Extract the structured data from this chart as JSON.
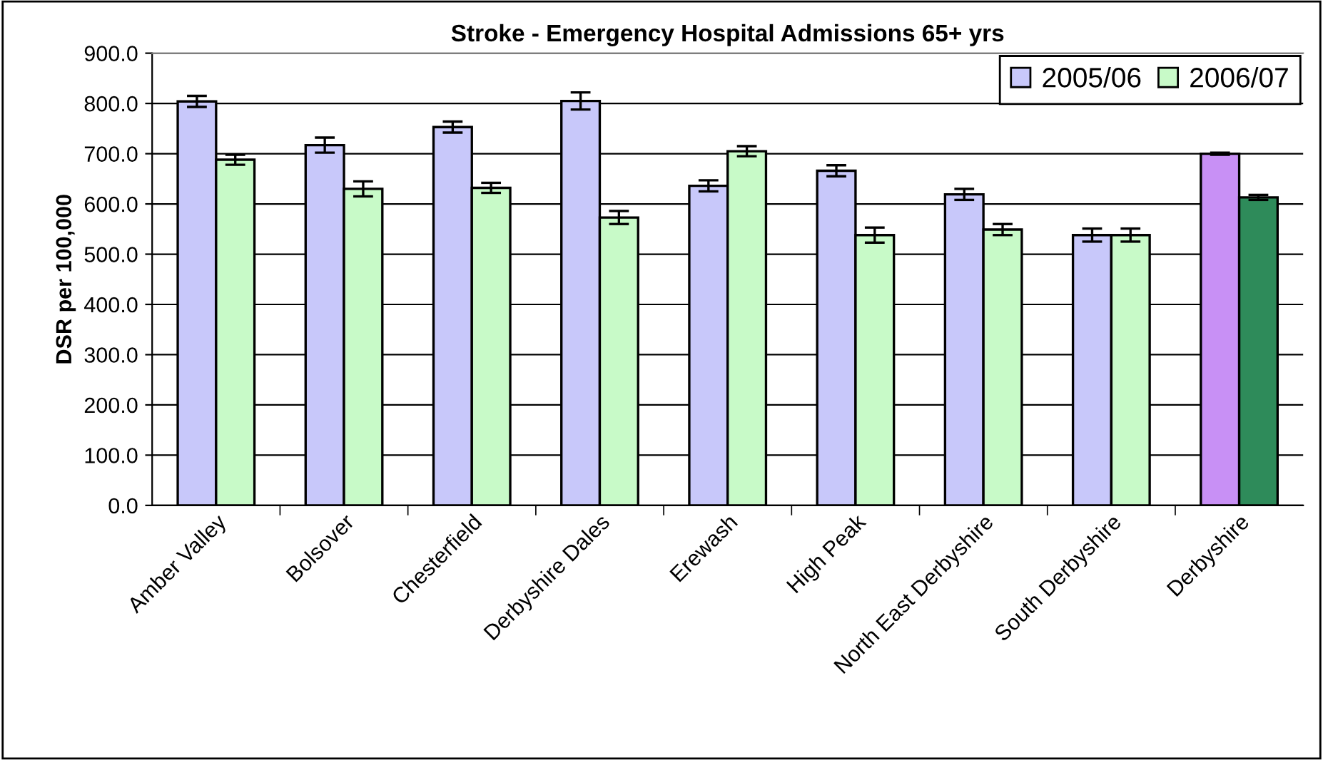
{
  "chart_data": {
    "type": "bar",
    "title": "Stroke - Emergency Hospital Admissions 65+ yrs",
    "ylabel": "DSR per 100,000",
    "categories": [
      "Amber Valley",
      "Bolsover",
      "Chesterfield",
      "Derbyshire Dales",
      "Erewash",
      "High Peak",
      "North East Derbyshire",
      "South Derbyshire",
      "Derbyshire"
    ],
    "series": [
      {
        "name": "2005/06",
        "color": "#c8c8fa",
        "colors": [
          "#c8c8fa",
          "#c8c8fa",
          "#c8c8fa",
          "#c8c8fa",
          "#c8c8fa",
          "#c8c8fa",
          "#c8c8fa",
          "#c8c8fa",
          "#c890f5"
        ],
        "values": [
          804,
          717,
          753,
          805,
          636,
          666,
          619,
          538,
          700
        ],
        "errors": [
          11,
          15,
          11,
          17,
          11,
          11,
          11,
          13,
          2
        ]
      },
      {
        "name": "2006/07",
        "color": "#c8fac8",
        "colors": [
          "#c8fac8",
          "#c8fac8",
          "#c8fac8",
          "#c8fac8",
          "#c8fac8",
          "#c8fac8",
          "#c8fac8",
          "#c8fac8",
          "#2e8b5a"
        ],
        "values": [
          688,
          630,
          632,
          573,
          705,
          538,
          549,
          538,
          613
        ],
        "errors": [
          10,
          15,
          10,
          13,
          10,
          15,
          11,
          13,
          5
        ]
      }
    ],
    "ylim": [
      0,
      900
    ],
    "yticks": [
      {
        "value": 0,
        "label": "0.0"
      },
      {
        "value": 100,
        "label": "100.0"
      },
      {
        "value": 200,
        "label": "200.0"
      },
      {
        "value": 300,
        "label": "300.0"
      },
      {
        "value": 400,
        "label": "400.0"
      },
      {
        "value": 500,
        "label": "500.0"
      },
      {
        "value": 600,
        "label": "600.0"
      },
      {
        "value": 700,
        "label": "700.0"
      },
      {
        "value": 800,
        "label": "800.0"
      },
      {
        "value": 900,
        "label": "900.0"
      }
    ],
    "grid": "y",
    "legend": "top right"
  }
}
